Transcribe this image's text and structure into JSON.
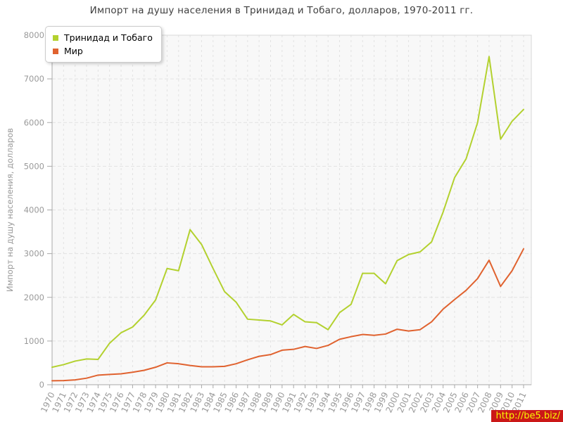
{
  "chart_data": {
    "type": "line",
    "title": "Импорт на душу населения в Тринидад и Тобаго, долларов, 1970-2011 гг.",
    "xlabel": "",
    "ylabel": "Импорт на душу населения, долларов",
    "ylim": [
      0,
      8000
    ],
    "ytick_step": 1000,
    "grid": true,
    "legend_position": "top-left",
    "categories": [
      "1970",
      "1971",
      "1972",
      "1973",
      "1974",
      "1975",
      "1976",
      "1977",
      "1978",
      "1979",
      "1980",
      "1981",
      "1982",
      "1983",
      "1984",
      "1985",
      "1986",
      "1987",
      "1988",
      "1989",
      "1990",
      "1991",
      "1992",
      "1993",
      "1994",
      "1995",
      "1996",
      "1997",
      "1998",
      "1999",
      "2000",
      "2001",
      "2002",
      "2003",
      "2004",
      "2005",
      "2006",
      "2007",
      "2008",
      "2009",
      "2010",
      "2011"
    ],
    "series": [
      {
        "name": "Тринидад и Тобаго",
        "color": "#b3d12f",
        "values": [
          400,
          460,
          540,
          590,
          580,
          950,
          1190,
          1320,
          1590,
          1940,
          2660,
          2610,
          3550,
          3210,
          2660,
          2130,
          1890,
          1500,
          1480,
          1460,
          1370,
          1610,
          1440,
          1420,
          1260,
          1650,
          1840,
          2550,
          2550,
          2310,
          2840,
          2980,
          3040,
          3270,
          3950,
          4740,
          5170,
          6000,
          7510,
          5620,
          6030,
          6300
        ]
      },
      {
        "name": "Мир",
        "color": "#e0622f",
        "values": [
          90,
          95,
          110,
          150,
          220,
          235,
          250,
          285,
          330,
          400,
          500,
          480,
          440,
          410,
          410,
          420,
          480,
          570,
          650,
          690,
          790,
          810,
          875,
          830,
          900,
          1040,
          1100,
          1150,
          1130,
          1160,
          1270,
          1230,
          1260,
          1440,
          1730,
          1950,
          2160,
          2430,
          2850,
          2250,
          2610,
          3110
        ]
      }
    ]
  },
  "watermark": {
    "text": "http://be5.biz/",
    "bg": "#cb1818",
    "fg": "#f7f704"
  },
  "style_colors": {
    "plot_background": "#f8f8f8",
    "gridline": "#e2e2e2",
    "axis": "#a8a8a8",
    "tick_label": "#9a9a9a",
    "title_text": "#3f3f3f"
  }
}
